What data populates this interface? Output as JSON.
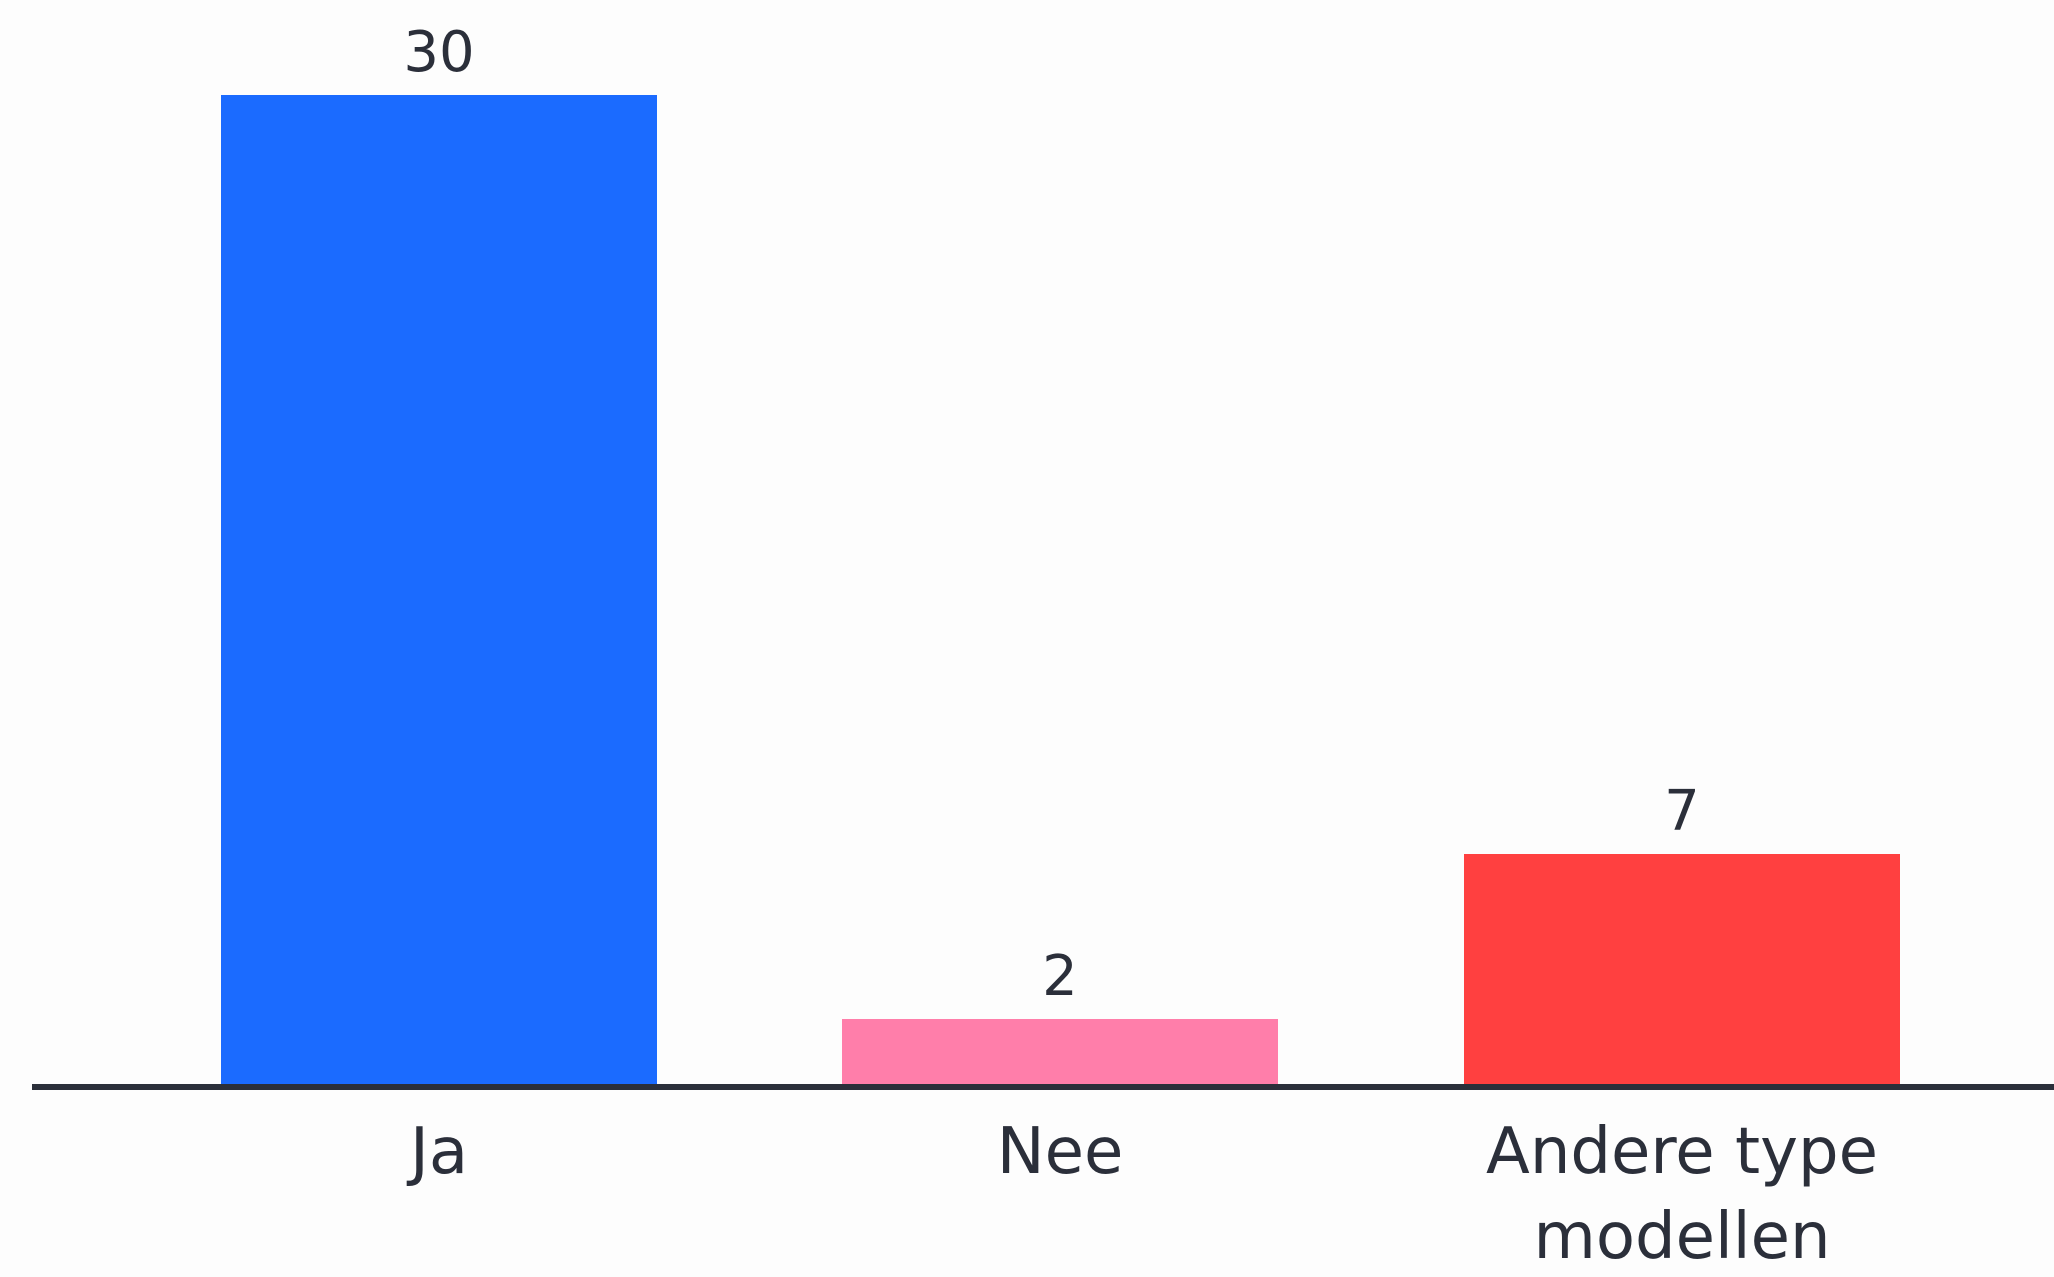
{
  "chart_data": {
    "type": "bar",
    "title": "",
    "xlabel": "",
    "ylabel": "",
    "categories": [
      "Ja",
      "Nee",
      "Andere type modellen"
    ],
    "category_label_lines": [
      [
        "Ja"
      ],
      [
        "Nee"
      ],
      [
        "Andere type",
        "modellen"
      ]
    ],
    "values": [
      30,
      2,
      7
    ],
    "value_labels": [
      "30",
      "2",
      "7"
    ],
    "colors": [
      "#1b6bff",
      "#ff7eaa",
      "#ff4040"
    ],
    "baseline_color": "#2b2f3a",
    "ylim": [
      0,
      30
    ],
    "grid": false,
    "legend": "none"
  }
}
